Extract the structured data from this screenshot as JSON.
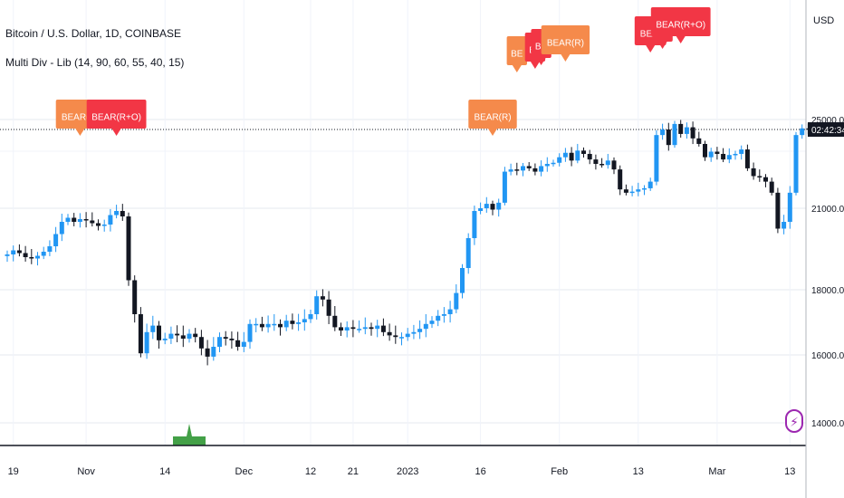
{
  "header": {
    "title": "Bitcoin / U.S. Dollar, 1D, COINBASE",
    "indicator": "Multi Div - Lib (14, 90, 60, 55, 40, 15)"
  },
  "price_axis": {
    "currency": "USD",
    "current_label": "02:42:34"
  },
  "colors": {
    "up": "#2196f3",
    "down": "#131722",
    "bear_regular": "#f58a4b",
    "bear_hidden": "#f23645",
    "bull_marker": "#43a047",
    "icon": "#9c27b0"
  },
  "chart_data": {
    "type": "candlestick",
    "title": "Bitcoin / U.S. Dollar, 1D, COINBASE",
    "ylabel": "USD",
    "ylim": [
      13500,
      26500
    ],
    "ytick_labels": [
      "14000.00",
      "16000.00",
      "18000.00",
      "21000.00",
      "25000.00"
    ],
    "ytick_values": [
      14000,
      16000,
      18000,
      21000,
      25000
    ],
    "xtick_labels": [
      "19",
      "Nov",
      "14",
      "Dec",
      "12",
      "21",
      "2023",
      "16",
      "Feb",
      "13",
      "Mar",
      "13"
    ],
    "xtick_index": [
      1,
      13,
      26,
      39,
      50,
      57,
      66,
      78,
      91,
      104,
      117,
      129
    ],
    "closes": [
      19300,
      19450,
      19350,
      19200,
      19150,
      19250,
      19400,
      19600,
      20050,
      20500,
      20650,
      20500,
      20600,
      20550,
      20450,
      20350,
      20400,
      20750,
      20900,
      20700,
      18350,
      17250,
      16050,
      16700,
      16900,
      16450,
      16500,
      16650,
      16600,
      16500,
      16650,
      16550,
      16200,
      15950,
      16250,
      16550,
      16500,
      16450,
      16250,
      16400,
      16950,
      16950,
      16850,
      16950,
      16950,
      16850,
      17050,
      16950,
      17000,
      17100,
      17250,
      17800,
      17700,
      17200,
      16850,
      16750,
      16850,
      16800,
      16800,
      16850,
      16800,
      16900,
      16700,
      16600,
      16550,
      16550,
      16650,
      16700,
      16800,
      16950,
      17050,
      17200,
      17250,
      17400,
      17900,
      18800,
      19900,
      20900,
      21000,
      21200,
      20950,
      21250,
      22650,
      22750,
      22700,
      22900,
      22800,
      22650,
      22900,
      23000,
      23050,
      23300,
      23500,
      23150,
      23600,
      23450,
      23200,
      23000,
      22950,
      23150,
      22750,
      21850,
      21700,
      21750,
      21850,
      21900,
      22200,
      24300,
      24550,
      23850,
      24800,
      24350,
      24650,
      24150,
      23900,
      23300,
      23550,
      23450,
      23200,
      23400,
      23450,
      23650,
      22800,
      22450,
      22400,
      22200,
      21700,
      20250,
      20500,
      21700,
      24300,
      24600,
      24550
    ]
  },
  "signals": {
    "bear_labels": [
      {
        "text": "BEAR(R)",
        "type": "regular"
      },
      {
        "text": "BEAR(R+O)",
        "type": "hidden"
      },
      {
        "text": "BEAR(R)",
        "type": "regular"
      },
      {
        "text": "BE",
        "type": "regular"
      },
      {
        "text": "BE",
        "type": "hidden"
      },
      {
        "text": "BE",
        "type": "hidden"
      },
      {
        "text": "BEAR(R)",
        "type": "regular"
      },
      {
        "text": "BEAI",
        "type": "hidden"
      },
      {
        "text": "BE",
        "type": "hidden"
      },
      {
        "text": "BEAR(R+O)",
        "type": "hidden"
      }
    ],
    "bull_markers": 1
  }
}
